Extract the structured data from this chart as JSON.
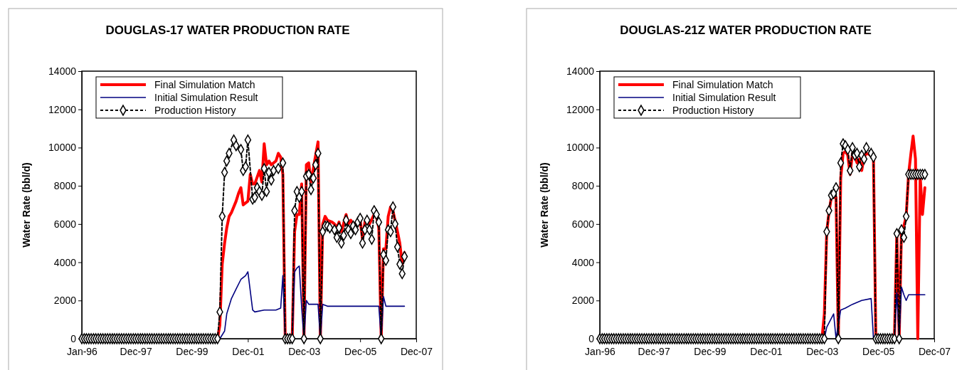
{
  "chart_data": [
    {
      "type": "line",
      "title": "DOUGLAS-17 WATER PRODUCTION RATE",
      "ylabel": "Water Rate (bbl/d)",
      "xlim": [
        "1996-01",
        "2007-12"
      ],
      "xticks": [
        {
          "value": "1996-01",
          "label": "Jan-96"
        },
        {
          "value": "1997-12",
          "label": "Dec-97"
        },
        {
          "value": "1999-12",
          "label": "Dec-99"
        },
        {
          "value": "2001-12",
          "label": "Dec-01"
        },
        {
          "value": "2003-12",
          "label": "Dec-03"
        },
        {
          "value": "2005-12",
          "label": "Dec-05"
        },
        {
          "value": "2007-12",
          "label": "Dec-07"
        }
      ],
      "ylim": [
        0,
        14000
      ],
      "yticks": [
        0,
        2000,
        4000,
        6000,
        8000,
        10000,
        12000,
        14000
      ],
      "grid": false,
      "legend": "top left",
      "series": [
        {
          "name": "Final Simulation Match",
          "color": "#ff0000",
          "marker": "none",
          "line_style": "solid",
          "x": [
            "1996-01",
            "2000-11",
            "2000-12",
            "2001-01",
            "2001-02",
            "2001-03",
            "2001-04",
            "2001-05",
            "2001-07",
            "2001-08",
            "2001-09",
            "2001-10",
            "2001-12",
            "2002-01",
            "2002-02",
            "2002-03",
            "2002-05",
            "2002-06",
            "2002-07",
            "2002-08",
            "2002-09",
            "2002-10",
            "2002-12",
            "2003-01",
            "2003-02",
            "2003-03",
            "2003-04",
            "2003-07",
            "2003-08",
            "2003-09",
            "2003-10",
            "2003-11",
            "2003-12",
            "2004-01",
            "2004-02",
            "2004-03",
            "2004-04",
            "2004-05",
            "2004-06",
            "2004-07",
            "2004-08",
            "2004-09",
            "2004-10",
            "2004-12",
            "2005-01",
            "2005-02",
            "2005-03",
            "2005-04",
            "2005-06",
            "2005-07",
            "2005-08",
            "2005-09",
            "2005-11",
            "2005-12",
            "2006-01",
            "2006-02",
            "2006-03",
            "2006-04",
            "2006-06",
            "2006-07",
            "2006-08",
            "2006-09",
            "2006-10",
            "2006-11",
            "2006-12",
            "2007-01",
            "2007-02",
            "2007-04",
            "2007-05",
            "2007-06",
            "2007-07"
          ],
          "values": [
            0,
            0,
            700,
            3900,
            5000,
            5800,
            6400,
            6600,
            7200,
            7600,
            7900,
            7000,
            7200,
            8600,
            8100,
            8100,
            8800,
            8200,
            10200,
            9100,
            9300,
            9100,
            9300,
            9700,
            9500,
            8600,
            0,
            0,
            5600,
            6500,
            6500,
            8100,
            0,
            9100,
            9200,
            8200,
            8900,
            9600,
            10300,
            0,
            6000,
            6400,
            6200,
            6100,
            6000,
            5800,
            6100,
            5600,
            6500,
            6000,
            6200,
            6000,
            6100,
            6200,
            5200,
            6100,
            6300,
            6000,
            6500,
            6400,
            5800,
            0,
            4700,
            4700,
            6400,
            6900,
            6700,
            5600,
            5000,
            3900,
            4500
          ]
        },
        {
          "name": "Initial Simulation Result",
          "color": "#000080",
          "marker": "none",
          "line_style": "solid",
          "x": [
            "1996-01",
            "2000-12",
            "2001-02",
            "2001-03",
            "2001-05",
            "2001-07",
            "2001-09",
            "2001-11",
            "2001-12",
            "2002-02",
            "2002-03",
            "2002-07",
            "2002-12",
            "2003-02",
            "2003-03",
            "2003-04",
            "2003-07",
            "2003-08",
            "2003-09",
            "2003-10",
            "2003-11",
            "2003-12",
            "2004-01",
            "2004-02",
            "2004-06",
            "2004-07",
            "2004-08",
            "2004-10",
            "2006-08",
            "2006-09",
            "2006-10",
            "2006-11",
            "2007-07"
          ],
          "values": [
            0,
            0,
            400,
            1300,
            2100,
            2600,
            3100,
            3300,
            3500,
            1500,
            1400,
            1500,
            1500,
            1600,
            3300,
            0,
            0,
            3500,
            3700,
            3800,
            1600,
            0,
            2000,
            1800,
            1800,
            0,
            1800,
            1700,
            1700,
            0,
            2200,
            1700,
            1700
          ]
        },
        {
          "name": "Production History",
          "color": "#000000",
          "marker": "diamond",
          "line_style": "dashed",
          "x": [
            "1996-01",
            "1996-02",
            "1996-03",
            "1996-04",
            "1996-05",
            "1996-06",
            "1996-07",
            "1996-08",
            "1996-09",
            "1996-10",
            "1996-11",
            "1996-12",
            "1997-01",
            "1997-02",
            "1997-03",
            "1997-04",
            "1997-05",
            "1997-06",
            "1997-07",
            "1997-08",
            "1997-09",
            "1997-10",
            "1997-11",
            "1997-12",
            "1998-01",
            "1998-02",
            "1998-03",
            "1998-04",
            "1998-05",
            "1998-06",
            "1998-07",
            "1998-08",
            "1998-09",
            "1998-10",
            "1998-11",
            "1998-12",
            "1999-01",
            "1999-02",
            "1999-03",
            "1999-04",
            "1999-05",
            "1999-06",
            "1999-07",
            "1999-08",
            "1999-09",
            "1999-10",
            "1999-11",
            "1999-12",
            "2000-01",
            "2000-02",
            "2000-03",
            "2000-04",
            "2000-05",
            "2000-06",
            "2000-07",
            "2000-08",
            "2000-09",
            "2000-10",
            "2000-11",
            "2000-12",
            "2001-01",
            "2001-02",
            "2001-03",
            "2001-04",
            "2001-06",
            "2001-07",
            "2001-09",
            "2001-10",
            "2001-11",
            "2001-12",
            "2002-02",
            "2002-03",
            "2002-04",
            "2002-05",
            "2002-06",
            "2002-07",
            "2002-08",
            "2002-09",
            "2002-10",
            "2002-11",
            "2003-01",
            "2003-03",
            "2003-04",
            "2003-05",
            "2003-06",
            "2003-07",
            "2003-08",
            "2003-09",
            "2003-10",
            "2003-11",
            "2003-12",
            "2004-01",
            "2004-02",
            "2004-03",
            "2004-04",
            "2004-05",
            "2004-06",
            "2004-07",
            "2004-08",
            "2004-09",
            "2004-10",
            "2004-11",
            "2005-01",
            "2005-02",
            "2005-03",
            "2005-04",
            "2005-05",
            "2005-06",
            "2005-07",
            "2005-08",
            "2005-09",
            "2005-10",
            "2005-11",
            "2005-12",
            "2006-01",
            "2006-02",
            "2006-03",
            "2006-04",
            "2006-05",
            "2006-06",
            "2006-07",
            "2006-08",
            "2006-09",
            "2006-10",
            "2006-11",
            "2006-12",
            "2007-01",
            "2007-02",
            "2007-03",
            "2007-04",
            "2007-05",
            "2007-06",
            "2007-07"
          ],
          "values": [
            0,
            0,
            0,
            0,
            0,
            0,
            0,
            0,
            0,
            0,
            0,
            0,
            0,
            0,
            0,
            0,
            0,
            0,
            0,
            0,
            0,
            0,
            0,
            0,
            0,
            0,
            0,
            0,
            0,
            0,
            0,
            0,
            0,
            0,
            0,
            0,
            0,
            0,
            0,
            0,
            0,
            0,
            0,
            0,
            0,
            0,
            0,
            0,
            0,
            0,
            0,
            0,
            0,
            0,
            0,
            0,
            0,
            0,
            0,
            1400,
            6400,
            8700,
            9300,
            9700,
            10400,
            10100,
            9900,
            8800,
            9000,
            10400,
            7300,
            7400,
            7900,
            7700,
            7500,
            8900,
            7700,
            8700,
            8300,
            8800,
            8900,
            9200,
            0,
            0,
            0,
            0,
            6700,
            7700,
            7400,
            7700,
            0,
            8500,
            8600,
            7800,
            8400,
            9100,
            9700,
            0,
            5600,
            5900,
            5900,
            5800,
            5700,
            5300,
            5800,
            5000,
            5400,
            6200,
            5700,
            5500,
            5900,
            5700,
            6100,
            6300,
            5000,
            5700,
            6200,
            5700,
            5200,
            6700,
            6500,
            6100,
            0,
            4400,
            4100,
            5700,
            5600,
            6900,
            6000,
            4800,
            3900,
            3400,
            4300
          ]
        }
      ]
    },
    {
      "type": "line",
      "title": "DOUGLAS-21Z WATER PRODUCTION RATE",
      "ylabel": "Water Rate (bbl/d)",
      "xlim": [
        "1996-01",
        "2007-12"
      ],
      "xticks": [
        {
          "value": "1996-01",
          "label": "Jan-96"
        },
        {
          "value": "1997-12",
          "label": "Dec-97"
        },
        {
          "value": "1999-12",
          "label": "Dec-99"
        },
        {
          "value": "2001-12",
          "label": "Dec-01"
        },
        {
          "value": "2003-12",
          "label": "Dec-03"
        },
        {
          "value": "2005-12",
          "label": "Dec-05"
        },
        {
          "value": "2007-12",
          "label": "Dec-07"
        }
      ],
      "ylim": [
        0,
        14000
      ],
      "yticks": [
        0,
        2000,
        4000,
        6000,
        8000,
        10000,
        12000,
        14000
      ],
      "grid": false,
      "legend": "top left",
      "series": [
        {
          "name": "Final Simulation Match",
          "color": "#ff0000",
          "marker": "none",
          "line_style": "solid",
          "x": [
            "1996-01",
            "2003-12",
            "2004-01",
            "2004-02",
            "2004-03",
            "2004-04",
            "2004-05",
            "2004-06",
            "2004-07",
            "2004-08",
            "2004-09",
            "2004-10",
            "2004-11",
            "2004-12",
            "2005-01",
            "2005-02",
            "2005-03",
            "2005-04",
            "2005-05",
            "2005-06",
            "2005-07",
            "2005-09",
            "2005-10",
            "2005-11",
            "2006-07",
            "2006-08",
            "2006-09",
            "2006-10",
            "2006-11",
            "2006-12",
            "2007-01",
            "2007-02",
            "2007-03",
            "2007-04",
            "2007-05",
            "2007-06",
            "2007-07",
            "2007-08"
          ],
          "values": [
            0,
            0,
            1300,
            5600,
            6600,
            7400,
            7400,
            7400,
            0,
            8400,
            9700,
            9800,
            9600,
            8600,
            9700,
            9500,
            9200,
            9400,
            8800,
            9500,
            9700,
            9600,
            9500,
            0,
            0,
            5500,
            0,
            5700,
            5900,
            6400,
            8600,
            9700,
            10600,
            9400,
            0,
            8500,
            6500,
            7900
          ]
        },
        {
          "name": "Initial Simulation Result",
          "color": "#000080",
          "marker": "none",
          "line_style": "solid",
          "x": [
            "1996-01",
            "2004-01",
            "2004-02",
            "2004-05",
            "2004-06",
            "2004-08",
            "2004-10",
            "2005-01",
            "2005-05",
            "2005-09",
            "2005-10",
            "2006-07",
            "2006-08",
            "2006-09",
            "2006-10",
            "2006-11",
            "2006-12",
            "2007-01",
            "2007-08"
          ],
          "values": [
            0,
            0,
            600,
            1300,
            0,
            1500,
            1600,
            1800,
            2000,
            2100,
            0,
            0,
            2400,
            0,
            2700,
            2300,
            2000,
            2300,
            2300
          ]
        },
        {
          "name": "Production History",
          "color": "#000000",
          "marker": "diamond",
          "line_style": "dashed",
          "x": [
            "1996-01",
            "1996-02",
            "1996-03",
            "1996-04",
            "1996-05",
            "1996-06",
            "1996-07",
            "1996-08",
            "1996-09",
            "1996-10",
            "1996-11",
            "1996-12",
            "1997-01",
            "1997-02",
            "1997-03",
            "1997-04",
            "1997-05",
            "1997-06",
            "1997-07",
            "1997-08",
            "1997-09",
            "1997-10",
            "1997-11",
            "1997-12",
            "1998-01",
            "1998-02",
            "1998-03",
            "1998-04",
            "1998-05",
            "1998-06",
            "1998-07",
            "1998-08",
            "1998-09",
            "1998-10",
            "1998-11",
            "1998-12",
            "1999-01",
            "1999-02",
            "1999-03",
            "1999-04",
            "1999-05",
            "1999-06",
            "1999-07",
            "1999-08",
            "1999-09",
            "1999-10",
            "1999-11",
            "1999-12",
            "2000-01",
            "2000-02",
            "2000-03",
            "2000-04",
            "2000-05",
            "2000-06",
            "2000-07",
            "2000-08",
            "2000-09",
            "2000-10",
            "2000-11",
            "2000-12",
            "2001-01",
            "2001-02",
            "2001-03",
            "2001-04",
            "2001-05",
            "2001-06",
            "2001-07",
            "2001-08",
            "2001-09",
            "2001-10",
            "2001-11",
            "2001-12",
            "2002-01",
            "2002-02",
            "2002-03",
            "2002-04",
            "2002-05",
            "2002-06",
            "2002-07",
            "2002-08",
            "2002-09",
            "2002-10",
            "2002-11",
            "2002-12",
            "2003-01",
            "2003-02",
            "2003-03",
            "2003-04",
            "2003-05",
            "2003-06",
            "2003-07",
            "2003-08",
            "2003-09",
            "2003-10",
            "2003-11",
            "2003-12",
            "2004-01",
            "2004-02",
            "2004-03",
            "2004-04",
            "2004-05",
            "2004-06",
            "2004-07",
            "2004-08",
            "2004-09",
            "2004-10",
            "2004-11",
            "2004-12",
            "2005-01",
            "2005-02",
            "2005-03",
            "2005-04",
            "2005-05",
            "2005-06",
            "2005-07",
            "2005-09",
            "2005-10",
            "2005-11",
            "2005-12",
            "2006-01",
            "2006-02",
            "2006-03",
            "2006-04",
            "2006-05",
            "2006-06",
            "2006-07",
            "2006-08",
            "2006-09",
            "2006-10",
            "2006-11",
            "2006-12",
            "2007-01",
            "2007-02",
            "2007-03",
            "2007-04",
            "2007-05",
            "2007-06",
            "2007-07",
            "2007-08"
          ],
          "values": [
            0,
            0,
            0,
            0,
            0,
            0,
            0,
            0,
            0,
            0,
            0,
            0,
            0,
            0,
            0,
            0,
            0,
            0,
            0,
            0,
            0,
            0,
            0,
            0,
            0,
            0,
            0,
            0,
            0,
            0,
            0,
            0,
            0,
            0,
            0,
            0,
            0,
            0,
            0,
            0,
            0,
            0,
            0,
            0,
            0,
            0,
            0,
            0,
            0,
            0,
            0,
            0,
            0,
            0,
            0,
            0,
            0,
            0,
            0,
            0,
            0,
            0,
            0,
            0,
            0,
            0,
            0,
            0,
            0,
            0,
            0,
            0,
            0,
            0,
            0,
            0,
            0,
            0,
            0,
            0,
            0,
            0,
            0,
            0,
            0,
            0,
            0,
            0,
            0,
            0,
            0,
            0,
            0,
            0,
            0,
            0,
            0,
            5600,
            6700,
            7500,
            7600,
            7900,
            0,
            9200,
            10200,
            10100,
            9900,
            8800,
            10000,
            9600,
            9700,
            9000,
            9600,
            9400,
            10000,
            9700,
            9500,
            0,
            0,
            0,
            0,
            0,
            0,
            0,
            0,
            0,
            5500,
            0,
            5700,
            5300,
            6400,
            8600,
            8600,
            8600,
            8600,
            8600,
            8600,
            8600,
            8600
          ]
        }
      ]
    }
  ]
}
